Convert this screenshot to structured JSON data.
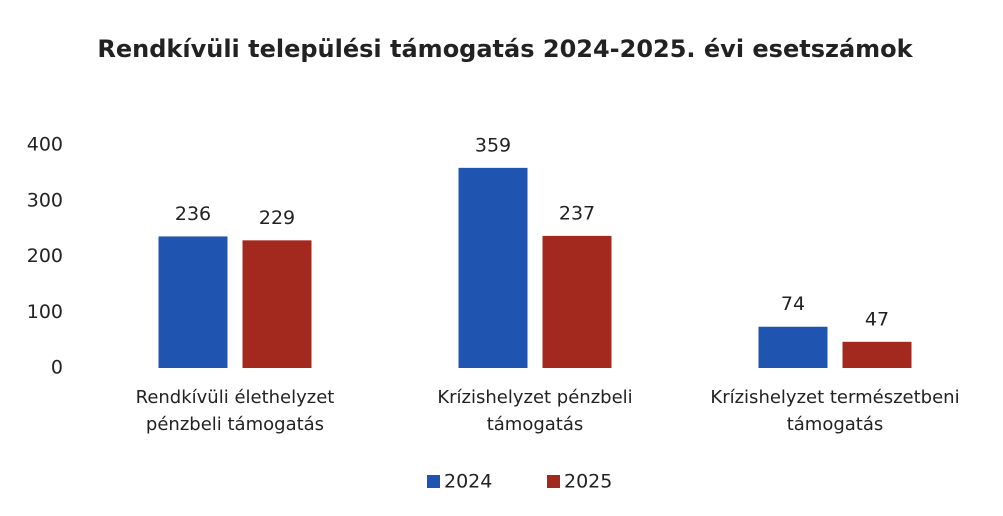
{
  "chart_data": {
    "type": "bar",
    "title": "Rendkívüli települési támogatás 2024-2025. évi esetszámok",
    "categories": [
      "Rendkívüli élethelyzet pénzbeli támogatás",
      "Krízishelyzet pénzbeli támogatás",
      "Krízishelyzet természetbeni támogatás"
    ],
    "series": [
      {
        "name": "2024",
        "color": "#1f55b0",
        "values": [
          236,
          359,
          74
        ]
      },
      {
        "name": "2025",
        "color": "#a3291f",
        "values": [
          229,
          237,
          47
        ]
      }
    ],
    "ylim": [
      0,
      400
    ],
    "yticks": [
      0,
      100,
      200,
      300,
      400
    ],
    "grid": false,
    "legend": "bottom"
  }
}
